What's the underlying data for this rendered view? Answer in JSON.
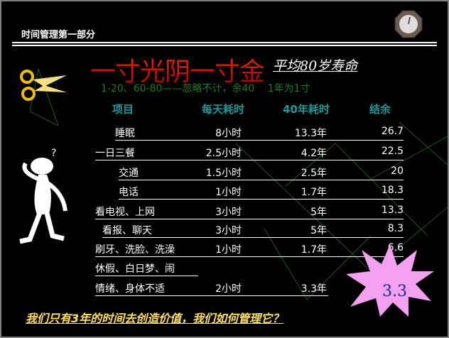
{
  "header": {
    "section": "时间管理第一部分"
  },
  "title": "一寸光阴一寸金",
  "subtitle": "平均80岁寿命",
  "note": "1-20、60-80——忽略不计，余40　 1年为1寸",
  "table": {
    "headers": [
      "项目",
      "每天耗时",
      "40年耗时",
      "结余"
    ],
    "rows": [
      {
        "item": "睡眠",
        "daily": "8小时",
        "total": "13.3年",
        "remain": "26.7"
      },
      {
        "item": "一日三餐",
        "daily": "2.5小时",
        "total": "4.2年",
        "remain": "22.5"
      },
      {
        "item": "交通",
        "daily": "1.5小时",
        "total": "2.5年",
        "remain": "20"
      },
      {
        "item": "电话",
        "daily": "1小时",
        "total": "1.7年",
        "remain": "18.3"
      },
      {
        "item": "看电视、上网",
        "daily": "3小时",
        "total": "5年",
        "remain": "13.3"
      },
      {
        "item": "看报、聊天",
        "daily": "3小时",
        "total": "5年",
        "remain": "8.3"
      },
      {
        "item": "刷牙、洗脸、洗澡",
        "daily": "1小时",
        "total": "1.7年",
        "remain": "6.6"
      },
      {
        "item": "休假、白日梦、闹",
        "daily": "",
        "total": "",
        "remain": ""
      },
      {
        "item": "情绪、身体不适",
        "daily": "2小时",
        "total": "3.3年",
        "remain": ""
      }
    ]
  },
  "final_remaining": "3.3",
  "bottom_text": "我们只有3年的时间去创造价值，我们如何管理它？",
  "colors": {
    "title": "#ff2a00",
    "note": "#1e7a1e",
    "header": "#1e9a9a",
    "bottom": "#ffe060",
    "star": "#f4a0f0"
  }
}
